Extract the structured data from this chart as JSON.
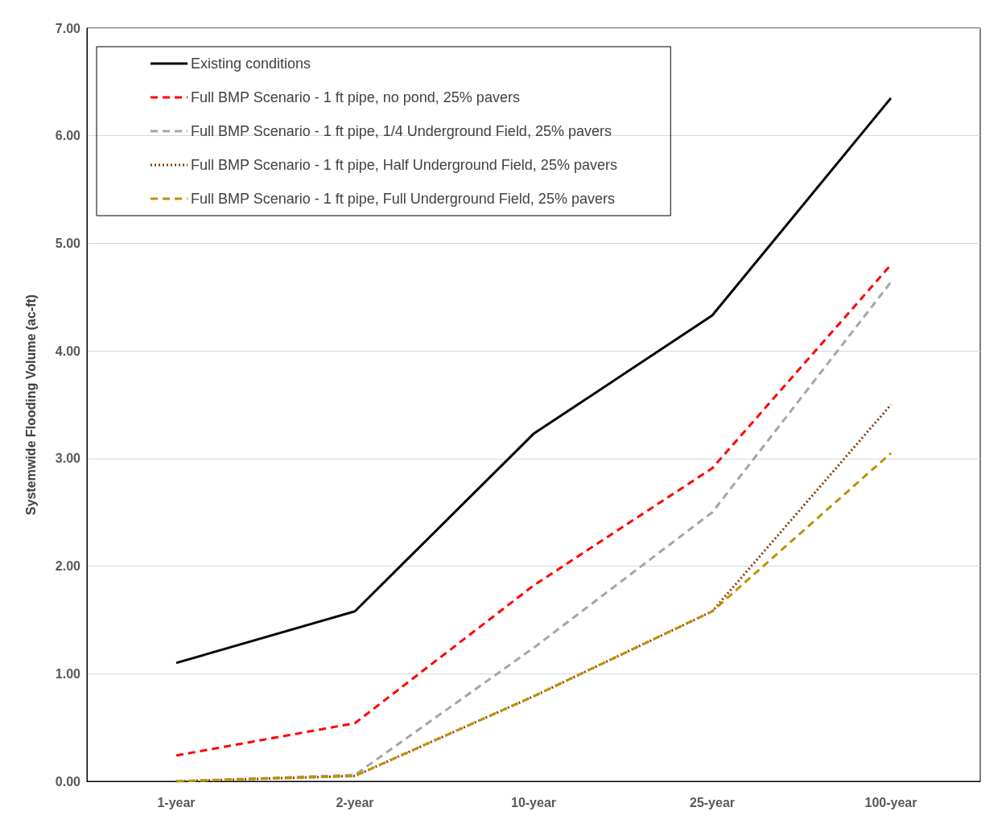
{
  "chart_data": {
    "type": "line",
    "ylabel": "Systemwide Flooding Volume (ac-ft)",
    "categories": [
      "1-year",
      "2-year",
      "10-year",
      "25-year",
      "100-year"
    ],
    "series": [
      {
        "name": "Existing conditions",
        "color": "#000000",
        "line_style": "solid",
        "values": [
          1.1,
          1.58,
          3.23,
          4.33,
          6.35
        ]
      },
      {
        "name": "Full BMP Scenario - 1 ft pipe, no pond, 25% pavers",
        "color": "#ff0000",
        "line_style": "dashed",
        "values": [
          0.24,
          0.54,
          1.82,
          2.91,
          4.8
        ]
      },
      {
        "name": "Full BMP Scenario - 1 ft pipe, 1/4 Underground Field, 25% pavers",
        "color": "#a6a6a6",
        "line_style": "dashed",
        "values": [
          0.0,
          0.06,
          1.24,
          2.5,
          4.64
        ]
      },
      {
        "name": "Full BMP Scenario - 1 ft pipe, Half Underground Field, 25% pavers",
        "color": "#843c0c",
        "line_style": "dotted",
        "values": [
          0.0,
          0.05,
          0.79,
          1.58,
          3.5
        ]
      },
      {
        "name": "Full BMP Scenario - 1 ft pipe, Full Underground Field, 25% pavers",
        "color": "#bf9000",
        "line_style": "dashed",
        "values": [
          0.0,
          0.05,
          0.79,
          1.58,
          3.05
        ]
      }
    ],
    "ylim": [
      0,
      7
    ],
    "yticks": [
      {
        "value": 0,
        "label": "0.00"
      },
      {
        "value": 1,
        "label": "1.00"
      },
      {
        "value": 2,
        "label": "2.00"
      },
      {
        "value": 3,
        "label": "3.00"
      },
      {
        "value": 4,
        "label": "4.00"
      },
      {
        "value": 5,
        "label": "5.00"
      },
      {
        "value": 6,
        "label": "6.00"
      },
      {
        "value": 7,
        "label": "7.00"
      }
    ],
    "grid": "y",
    "legend": "top left",
    "marker": "none"
  }
}
